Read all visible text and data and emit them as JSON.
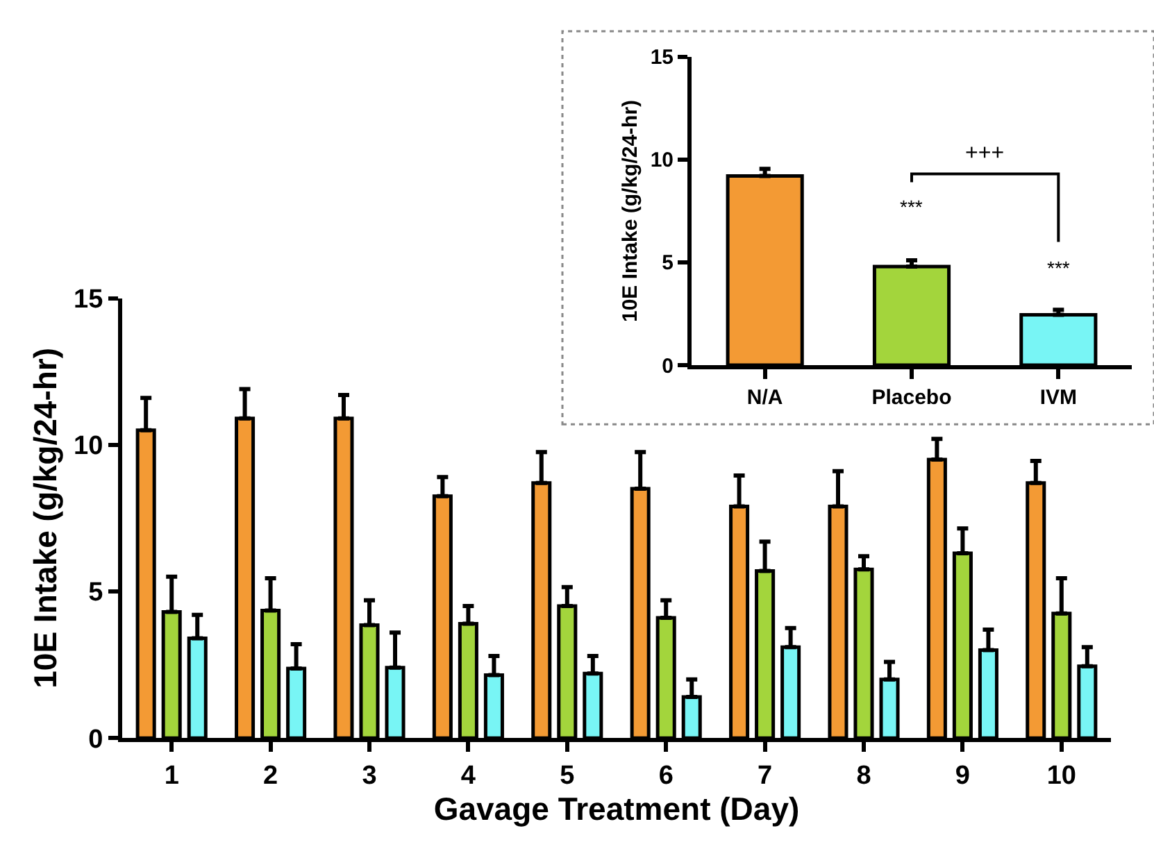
{
  "chart_data": [
    {
      "type": "bar",
      "xlabel": "Gavage Treatment (Day)",
      "ylabel": "10E Intake (g/kg/24-hr)",
      "categories": [
        "1",
        "2",
        "3",
        "4",
        "5",
        "6",
        "7",
        "8",
        "9",
        "10"
      ],
      "series": [
        {
          "color": "#f39a34",
          "values": [
            10.5,
            10.9,
            10.9,
            8.25,
            8.7,
            8.5,
            7.9,
            7.9,
            9.5,
            8.7
          ],
          "errors": [
            [
              10.5,
              11.6
            ],
            [
              10.9,
              11.9
            ],
            [
              10.9,
              11.7
            ],
            [
              8.25,
              8.9
            ],
            [
              8.7,
              9.75
            ],
            [
              8.5,
              9.75
            ],
            [
              7.9,
              8.95
            ],
            [
              7.9,
              9.1
            ],
            [
              9.5,
              10.2
            ],
            [
              8.7,
              9.45
            ]
          ]
        },
        {
          "color": "#a3d53c",
          "values": [
            4.3,
            4.35,
            3.85,
            3.9,
            4.5,
            4.1,
            5.7,
            5.75,
            6.3,
            4.25
          ],
          "errors": [
            [
              4.3,
              5.5
            ],
            [
              4.35,
              5.45
            ],
            [
              3.85,
              4.7
            ],
            [
              3.9,
              4.5
            ],
            [
              4.5,
              5.15
            ],
            [
              4.1,
              4.7
            ],
            [
              5.7,
              6.7
            ],
            [
              5.75,
              6.2
            ],
            [
              6.3,
              7.15
            ],
            [
              4.25,
              5.45
            ]
          ]
        },
        {
          "color": "#78f5f5",
          "values": [
            3.4,
            2.37,
            2.4,
            2.15,
            2.2,
            1.4,
            3.1,
            2.0,
            3.0,
            2.45
          ],
          "errors": [
            [
              3.4,
              4.2
            ],
            [
              2.37,
              3.2
            ],
            [
              2.4,
              3.6
            ],
            [
              2.15,
              2.8
            ],
            [
              2.2,
              2.8
            ],
            [
              1.4,
              2.0
            ],
            [
              3.1,
              3.75
            ],
            [
              2.0,
              2.6
            ],
            [
              3.0,
              3.7
            ],
            [
              2.45,
              3.1
            ]
          ]
        }
      ],
      "ylim": [
        0,
        15
      ],
      "yticks": [
        0,
        5,
        10,
        15
      ],
      "grid": false
    },
    {
      "type": "bar",
      "ylabel": "10E Intake (g/kg/24-hr)",
      "categories": [
        "N/A",
        "Placebo",
        "IVM"
      ],
      "values": [
        9.2,
        4.8,
        2.45
      ],
      "colors": [
        "#f39a34",
        "#a3d53c",
        "#78f5f5"
      ],
      "errors": [
        [
          9.2,
          9.55
        ],
        [
          4.8,
          5.1
        ],
        [
          2.45,
          2.7
        ]
      ],
      "ylim": [
        0,
        15
      ],
      "yticks": [
        0,
        5,
        10,
        15
      ],
      "grid": false,
      "annotations": [
        "***",
        "***",
        "+++"
      ]
    }
  ]
}
